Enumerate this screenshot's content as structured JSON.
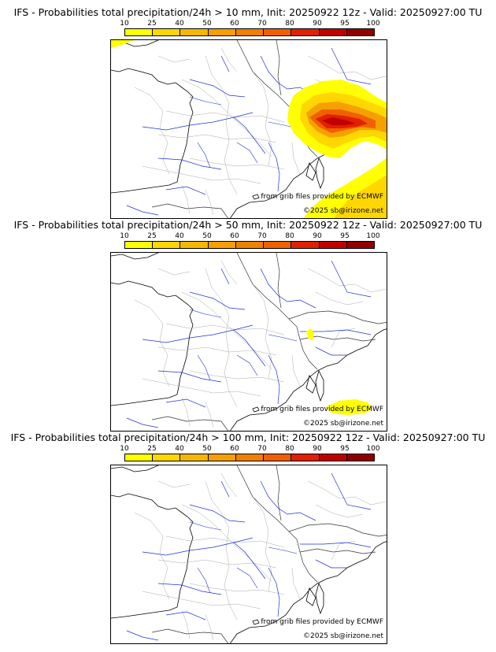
{
  "colorbar": {
    "ticks": [
      "10",
      "25",
      "40",
      "50",
      "60",
      "70",
      "80",
      "90",
      "95",
      "100"
    ],
    "colors": [
      "#ffff00",
      "#ffd700",
      "#f5b800",
      "#f5a000",
      "#f08000",
      "#f06000",
      "#e02000",
      "#c00000",
      "#900000",
      "#600000"
    ]
  },
  "panels": [
    {
      "title": "IFS - Probabilities total precipitation/24h > 10 mm, Init: 20250922 12z - Valid: 20250927:00 TU",
      "credit_source": "from grib files provided by ECMWF",
      "credit_copyright": "©2025 sb@irizone.net"
    },
    {
      "title": "IFS - Probabilities total precipitation/24h > 50 mm, Init: 20250922 12z - Valid: 20250927:00 TU",
      "credit_source": "from grib files provided by ECMWF",
      "credit_copyright": "©2025 sb@irizone.net"
    },
    {
      "title": "IFS - Probabilities total precipitation/24h > 100 mm, Init: 20250922 12z - Valid: 20250927:00 TU",
      "credit_source": "from grib files provided by ECMWF",
      "credit_copyright": "©2025 sb@irizone.net"
    }
  ]
}
